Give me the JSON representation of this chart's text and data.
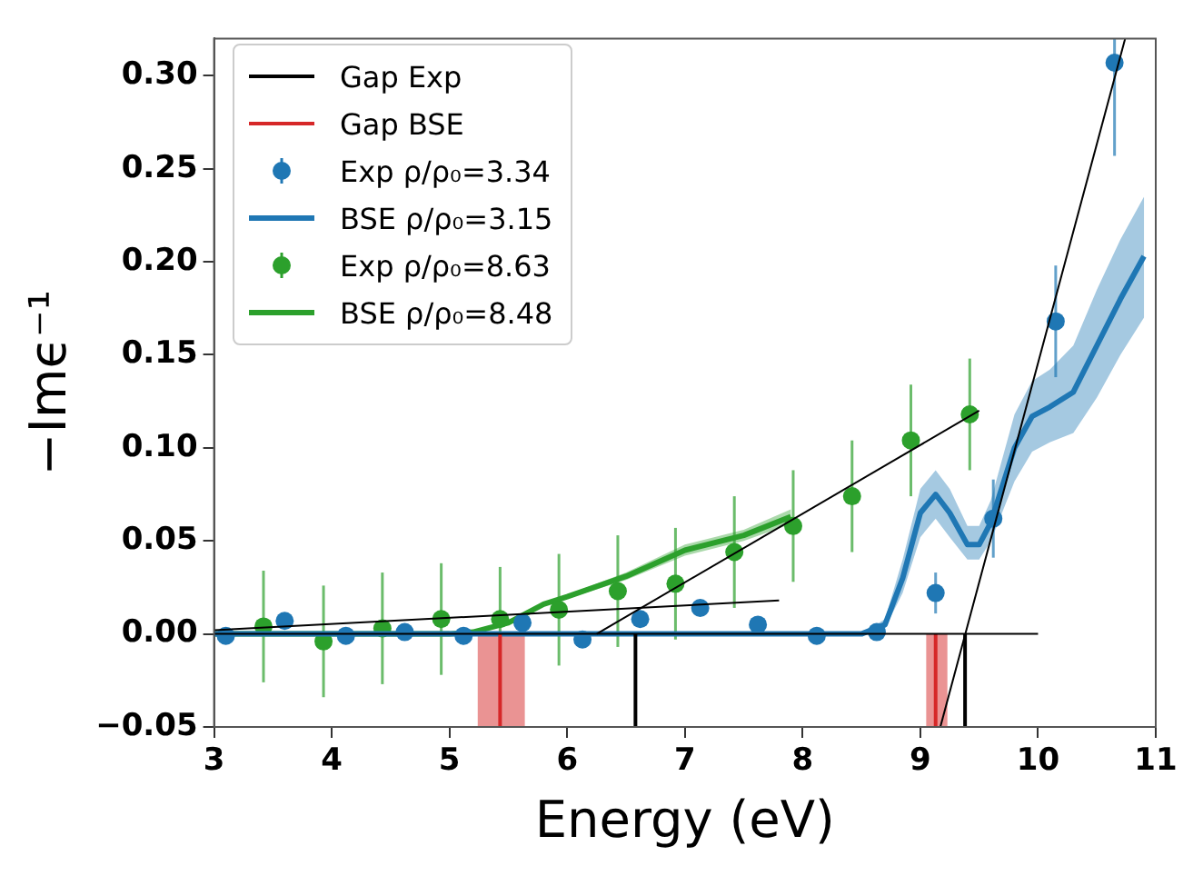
{
  "chart_data": {
    "type": "scatter",
    "xlabel": "Energy (eV)",
    "ylabel": "−Imϵ⁻¹",
    "xlim": [
      3,
      11
    ],
    "ylim": [
      -0.05,
      0.32
    ],
    "xticks": [
      3,
      4,
      5,
      6,
      7,
      8,
      9,
      10,
      11
    ],
    "yticks": [
      {
        "value": -0.05,
        "label": "−0.05"
      },
      {
        "value": 0,
        "label": "0.00"
      },
      0.05,
      {
        "value": 0.1,
        "label": "0.10"
      },
      0.15,
      {
        "value": 0.2,
        "label": "0.20"
      },
      0.25,
      {
        "value": 0.3,
        "label": "0.30"
      }
    ],
    "grid": false,
    "legend": "top left",
    "bands": [
      {
        "axis": "x",
        "from": 5.24,
        "to": 5.64,
        "color": "#d62728"
      },
      {
        "axis": "x",
        "from": 9.05,
        "to": 9.23,
        "color": "#d62728"
      }
    ],
    "series": [
      {
        "name": "Gap Exp",
        "type": "line",
        "color": "#000000",
        "x": [
          3,
          7.8
        ],
        "values": [
          0.002,
          0.018
        ]
      },
      {
        "type": "line",
        "color": "#000000",
        "x": [
          6.25,
          9.5
        ],
        "values": [
          0.0,
          0.12
        ]
      },
      {
        "type": "line",
        "color": "#000000",
        "x": [
          9.17,
          10.74
        ],
        "values": [
          -0.05,
          0.32
        ]
      },
      {
        "type": "line",
        "color": "#000000",
        "x": [
          3,
          10
        ],
        "values": [
          0,
          0
        ]
      },
      {
        "type": "line",
        "color": "#000000",
        "x": [
          6.58,
          6.58
        ],
        "values": [
          -0.05,
          0
        ]
      },
      {
        "type": "line",
        "color": "#000000",
        "x": [
          9.38,
          9.38
        ],
        "values": [
          -0.05,
          0
        ]
      },
      {
        "name": "Gap BSE",
        "type": "line",
        "color": "#d62728",
        "x": [
          5.43,
          5.43
        ],
        "values": [
          -0.05,
          0
        ]
      },
      {
        "type": "line",
        "color": "#d62728",
        "x": [
          9.13,
          9.13
        ],
        "values": [
          -0.05,
          0
        ]
      },
      {
        "name": "Exp ρ/ρ₀=3.34",
        "type": "scatter",
        "marker": "circle",
        "color": "#1f77b4",
        "x": [
          3.1,
          3.6,
          4.12,
          4.62,
          5.12,
          5.62,
          6.13,
          6.62,
          7.13,
          7.62,
          8.12,
          8.63,
          9.13,
          9.62,
          10.15,
          10.65
        ],
        "values": [
          -0.001,
          0.007,
          -0.001,
          0.001,
          -0.001,
          0.006,
          -0.003,
          0.008,
          0.014,
          0.005,
          -0.001,
          0.001,
          0.022,
          0.062,
          0.168,
          0.307
        ],
        "errors": [
          null,
          null,
          null,
          null,
          null,
          null,
          null,
          null,
          null,
          null,
          null,
          null,
          0.011,
          0.021,
          0.03,
          0.05
        ]
      },
      {
        "name": "BSE ρ/ρ₀=3.15",
        "type": "line",
        "color": "#1f77b4",
        "x": [
          3,
          8.5,
          8.7,
          8.85,
          9.0,
          9.13,
          9.25,
          9.4,
          9.5,
          9.6,
          9.8,
          9.95,
          10.1,
          10.3,
          10.5,
          10.7,
          10.9
        ],
        "values": [
          0,
          0,
          0.005,
          0.03,
          0.065,
          0.075,
          0.065,
          0.048,
          0.048,
          0.06,
          0.1,
          0.117,
          0.122,
          0.13,
          0.155,
          0.18,
          0.203
        ],
        "lower": [
          0,
          0,
          0.003,
          0.022,
          0.052,
          0.062,
          0.052,
          0.04,
          0.04,
          0.05,
          0.082,
          0.098,
          0.103,
          0.108,
          0.127,
          0.15,
          0.17
        ],
        "upper": [
          0,
          0,
          0.008,
          0.04,
          0.078,
          0.088,
          0.078,
          0.058,
          0.058,
          0.072,
          0.118,
          0.136,
          0.142,
          0.155,
          0.185,
          0.212,
          0.235
        ]
      },
      {
        "name": "Exp ρ/ρ₀=8.63",
        "type": "scatter",
        "marker": "circle",
        "color": "#2ca02c",
        "x": [
          3.42,
          3.93,
          4.43,
          4.93,
          5.43,
          5.93,
          6.43,
          6.92,
          7.42,
          7.92,
          8.42,
          8.92,
          9.42
        ],
        "values": [
          0.004,
          -0.004,
          0.003,
          0.008,
          0.008,
          0.013,
          0.023,
          0.027,
          0.044,
          0.058,
          0.074,
          0.104,
          0.118
        ],
        "errors": [
          0.03,
          0.03,
          0.03,
          0.03,
          0.028,
          0.03,
          0.03,
          0.03,
          0.03,
          0.03,
          0.03,
          0.03,
          0.03
        ]
      },
      {
        "name": "BSE ρ/ρ₀=8.48",
        "type": "line",
        "color": "#2ca02c",
        "x": [
          3,
          5.0,
          5.2,
          5.5,
          5.8,
          6.0,
          6.5,
          7.0,
          7.5,
          7.9
        ],
        "values": [
          0,
          0,
          0.001,
          0.006,
          0.016,
          0.02,
          0.031,
          0.045,
          0.053,
          0.063
        ],
        "lower": [
          0,
          0,
          0.001,
          0.005,
          0.015,
          0.019,
          0.029,
          0.042,
          0.05,
          0.059
        ],
        "upper": [
          0,
          0,
          0.001,
          0.007,
          0.017,
          0.021,
          0.033,
          0.048,
          0.056,
          0.067
        ]
      }
    ]
  }
}
